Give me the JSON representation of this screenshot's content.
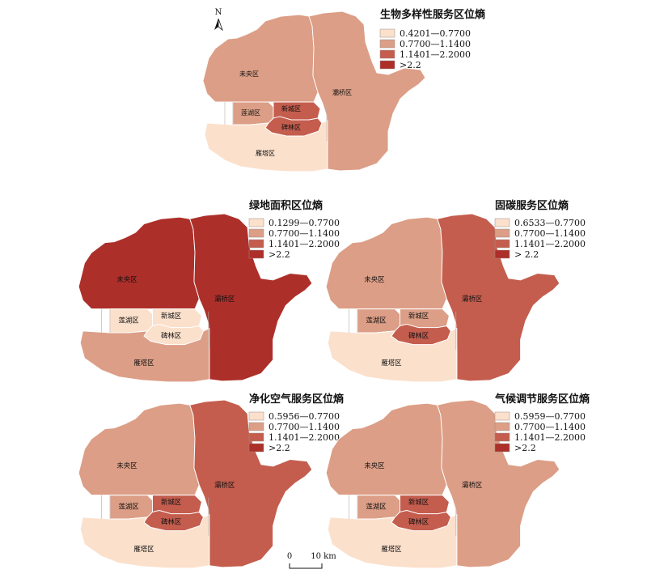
{
  "colors": {
    "class1": "#fbe0cc",
    "class2": "#dc9e86",
    "class3": "#c45d4e",
    "class4": "#ad2f2a",
    "border": "#ffffff"
  },
  "north_label": "N",
  "scale": {
    "zero": "0",
    "end": "10 km"
  },
  "districts": {
    "weiyang": "未央区",
    "baqiao": "灞桥区",
    "lianhu": "莲湖区",
    "xincheng": "新城区",
    "beilin": "碑林区",
    "yanta": "雁塔区"
  },
  "panels": [
    {
      "title": "生物多样性服务区位熵",
      "legend": [
        "0.4201—0.7700",
        "0.7700—1.1400",
        "1.1401—2.2000",
        ">2.2"
      ],
      "classes": {
        "weiyang": 2,
        "baqiao": 2,
        "lianhu": 2,
        "xincheng": 3,
        "beilin": 3,
        "yanta": 1
      }
    },
    {
      "title": "绿地面积区位熵",
      "legend": [
        "0.1299—0.7700",
        "0.7700—1.1400",
        "1.1401—2.2000",
        ">2.2"
      ],
      "classes": {
        "weiyang": 4,
        "baqiao": 4,
        "lianhu": 1,
        "xincheng": 1,
        "beilin": 1,
        "yanta": 2
      }
    },
    {
      "title": "固碳服务区位熵",
      "legend": [
        "0.6533—0.7700",
        "0.7700—1.1400",
        "1.1401—2.2000",
        "> 2.2"
      ],
      "classes": {
        "weiyang": 2,
        "baqiao": 3,
        "lianhu": 2,
        "xincheng": 2,
        "beilin": 3,
        "yanta": 1
      }
    },
    {
      "title": "净化空气服务区位熵",
      "legend": [
        "0.5956—0.7700",
        "0.7700—1.1400",
        "1.1401—2.2000",
        ">2.2"
      ],
      "classes": {
        "weiyang": 2,
        "baqiao": 3,
        "lianhu": 2,
        "xincheng": 3,
        "beilin": 3,
        "yanta": 1
      }
    },
    {
      "title": "气候调节服务区位熵",
      "legend": [
        "0.5959—0.7700",
        "0.7700—1.1400",
        "1.1401—2.2000",
        ">2.2"
      ],
      "classes": {
        "weiyang": 2,
        "baqiao": 2,
        "lianhu": 2,
        "xincheng": 3,
        "beilin": 3,
        "yanta": 1
      }
    }
  ]
}
